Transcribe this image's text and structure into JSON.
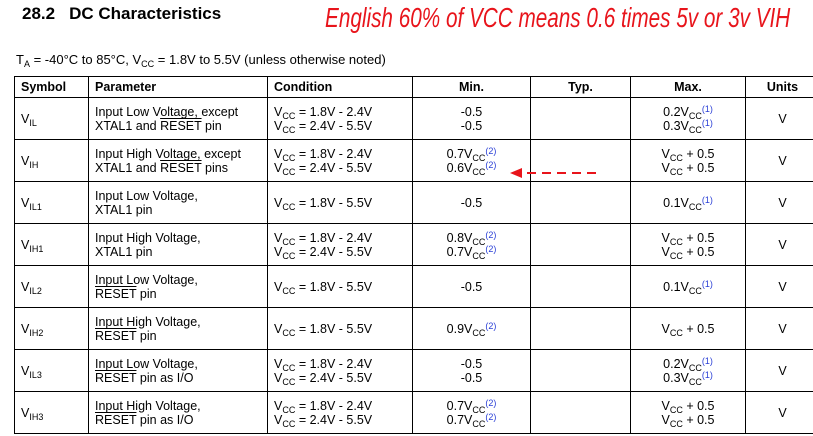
{
  "heading": {
    "number": "28.2",
    "title": "DC Characteristics"
  },
  "annotation": "English 60% of VCC means  0.6 times 5v or 3v VIH",
  "conditions_note": [
    "T",
    {
      "sub": "A"
    },
    " = -40°C to 85°C, V",
    {
      "sub": "CC"
    },
    " = 1.8V to 5.5V (unless otherwise noted)"
  ],
  "table": {
    "columns": [
      "Symbol",
      "Parameter",
      "Condition",
      "Min.",
      "Typ.",
      "Max.",
      "Units"
    ],
    "rows": [
      {
        "symbol": [
          [
            "V",
            {
              "sub": "IL"
            }
          ]
        ],
        "parameter": [
          [
            "Input Low Voltage, except"
          ],
          [
            "XTAL1 and ",
            {
              "over": "RESET"
            },
            " pin"
          ]
        ],
        "condition": [
          [
            "V",
            {
              "sub": "CC"
            },
            " = 1.8V - 2.4V"
          ],
          [
            "V",
            {
              "sub": "CC"
            },
            " = 2.4V - 5.5V"
          ]
        ],
        "min": [
          [
            "-0.5"
          ],
          [
            "-0.5"
          ]
        ],
        "max": [
          [
            "0.2V",
            {
              "sub": "CC"
            },
            {
              "sup": "(1)"
            }
          ],
          [
            "0.3V",
            {
              "sub": "CC"
            },
            {
              "sup": "(1)"
            }
          ]
        ],
        "units": "V"
      },
      {
        "symbol": [
          [
            "V",
            {
              "sub": "IH"
            }
          ]
        ],
        "parameter": [
          [
            "Input High Voltage, except"
          ],
          [
            "XTAL1 and ",
            {
              "over": "RESET"
            },
            " pins"
          ]
        ],
        "condition": [
          [
            "V",
            {
              "sub": "CC"
            },
            " = 1.8V - 2.4V"
          ],
          [
            "V",
            {
              "sub": "CC"
            },
            " = 2.4V - 5.5V"
          ]
        ],
        "min": [
          [
            "0.7V",
            {
              "sub": "CC"
            },
            {
              "sup": "(2)"
            }
          ],
          [
            "0.6V",
            {
              "sub": "CC"
            },
            {
              "sup": "(2)"
            }
          ]
        ],
        "max": [
          [
            "V",
            {
              "sub": "CC"
            },
            " + 0.5"
          ],
          [
            "V",
            {
              "sub": "CC"
            },
            " + 0.5"
          ]
        ],
        "units": "V"
      },
      {
        "symbol": [
          [
            "V",
            {
              "sub": "IL1"
            }
          ]
        ],
        "parameter": [
          [
            "Input Low Voltage,"
          ],
          [
            "XTAL1 pin"
          ]
        ],
        "condition": [
          [
            "V",
            {
              "sub": "CC"
            },
            " = 1.8V - 5.5V"
          ]
        ],
        "min": [
          [
            "-0.5"
          ]
        ],
        "max": [
          [
            "0.1V",
            {
              "sub": "CC"
            },
            {
              "sup": "(1)"
            }
          ]
        ],
        "units": "V"
      },
      {
        "symbol": [
          [
            "V",
            {
              "sub": "IH1"
            }
          ]
        ],
        "parameter": [
          [
            "Input High Voltage,"
          ],
          [
            "XTAL1 pin"
          ]
        ],
        "condition": [
          [
            "V",
            {
              "sub": "CC"
            },
            " = 1.8V - 2.4V"
          ],
          [
            "V",
            {
              "sub": "CC"
            },
            " = 2.4V - 5.5V"
          ]
        ],
        "min": [
          [
            "0.8V",
            {
              "sub": "CC"
            },
            {
              "sup": "(2)"
            }
          ],
          [
            "0.7V",
            {
              "sub": "CC"
            },
            {
              "sup": "(2)"
            }
          ]
        ],
        "max": [
          [
            "V",
            {
              "sub": "CC"
            },
            " + 0.5"
          ],
          [
            "V",
            {
              "sub": "CC"
            },
            " + 0.5"
          ]
        ],
        "units": "V"
      },
      {
        "symbol": [
          [
            "V",
            {
              "sub": "IL2"
            }
          ]
        ],
        "parameter": [
          [
            "Input Low Voltage,"
          ],
          [
            {
              "over": "RESET"
            },
            " pin"
          ]
        ],
        "condition": [
          [
            "V",
            {
              "sub": "CC"
            },
            " = 1.8V - 5.5V"
          ]
        ],
        "min": [
          [
            "-0.5"
          ]
        ],
        "max": [
          [
            "0.1V",
            {
              "sub": "CC"
            },
            {
              "sup": "(1)"
            }
          ]
        ],
        "units": "V"
      },
      {
        "symbol": [
          [
            "V",
            {
              "sub": "IH2"
            }
          ]
        ],
        "parameter": [
          [
            "Input High Voltage,"
          ],
          [
            {
              "over": "RESET"
            },
            " pin"
          ]
        ],
        "condition": [
          [
            "V",
            {
              "sub": "CC"
            },
            " = 1.8V - 5.5V"
          ]
        ],
        "min": [
          [
            "0.9V",
            {
              "sub": "CC"
            },
            {
              "sup": "(2)"
            }
          ]
        ],
        "max": [
          [
            "V",
            {
              "sub": "CC"
            },
            " + 0.5"
          ]
        ],
        "units": "V"
      },
      {
        "symbol": [
          [
            "V",
            {
              "sub": "IL3"
            }
          ]
        ],
        "parameter": [
          [
            "Input Low Voltage,"
          ],
          [
            {
              "over": "RESET"
            },
            " pin as I/O"
          ]
        ],
        "condition": [
          [
            "V",
            {
              "sub": "CC"
            },
            " = 1.8V - 2.4V"
          ],
          [
            "V",
            {
              "sub": "CC"
            },
            " = 2.4V - 5.5V"
          ]
        ],
        "min": [
          [
            "-0.5"
          ],
          [
            "-0.5"
          ]
        ],
        "max": [
          [
            "0.2V",
            {
              "sub": "CC"
            },
            {
              "sup": "(1)"
            }
          ],
          [
            "0.3V",
            {
              "sub": "CC"
            },
            {
              "sup": "(1)"
            }
          ]
        ],
        "units": "V"
      },
      {
        "symbol": [
          [
            "V",
            {
              "sub": "IH3"
            }
          ]
        ],
        "parameter": [
          [
            "Input High Voltage,"
          ],
          [
            {
              "over": "RESET"
            },
            " pin as I/O"
          ]
        ],
        "condition": [
          [
            "V",
            {
              "sub": "CC"
            },
            " = 1.8V - 2.4V"
          ],
          [
            "V",
            {
              "sub": "CC"
            },
            " = 2.4V - 5.5V"
          ]
        ],
        "min": [
          [
            "0.7V",
            {
              "sub": "CC"
            },
            {
              "sup": "(2)"
            }
          ],
          [
            "0.7V",
            {
              "sub": "CC"
            },
            {
              "sup": "(2)"
            }
          ]
        ],
        "max": [
          [
            "V",
            {
              "sub": "CC"
            },
            " + 0.5"
          ],
          [
            "V",
            {
              "sub": "CC"
            },
            " + 0.5"
          ]
        ],
        "units": "V"
      }
    ]
  }
}
